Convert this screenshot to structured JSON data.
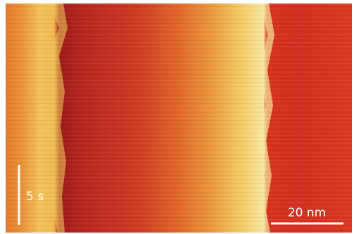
{
  "scale_bars": {
    "time": "5 s",
    "length": "20 nm"
  }
}
